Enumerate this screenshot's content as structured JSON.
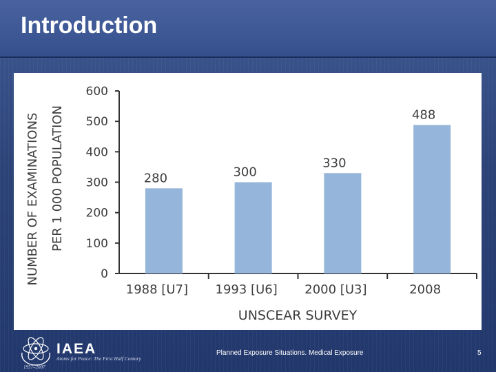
{
  "slide": {
    "title": "Introduction",
    "footer_caption": "Planned Exposure Situations. Medical Exposure",
    "page_number": "5",
    "colors": {
      "background": "#2c4378",
      "bar": "#95b6da",
      "text": "#3d3d3d"
    }
  },
  "logo": {
    "name": "IAEA",
    "tagline": "Atoms for Peace: The First Half Century",
    "years": "1957–2007",
    "icon": "iaea-atom-emblem-icon"
  },
  "chart_data": {
    "type": "bar",
    "categories": [
      "1988 [U7]",
      "1993 [U6]",
      "2000 [U3]",
      "2008"
    ],
    "values": [
      280,
      300,
      330,
      488
    ],
    "data_labels": [
      "280",
      "300",
      "330",
      "488"
    ],
    "title": "",
    "xlabel": "UNSCEAR SURVEY",
    "ylabel_line1": "NUMBER OF EXAMINATIONS",
    "ylabel_line2": "PER 1 000 POPULATION",
    "ylim": [
      0,
      600
    ],
    "yticks": [
      "0",
      "100",
      "200",
      "300",
      "400",
      "500",
      "600"
    ],
    "grid": false,
    "legend": "none"
  }
}
